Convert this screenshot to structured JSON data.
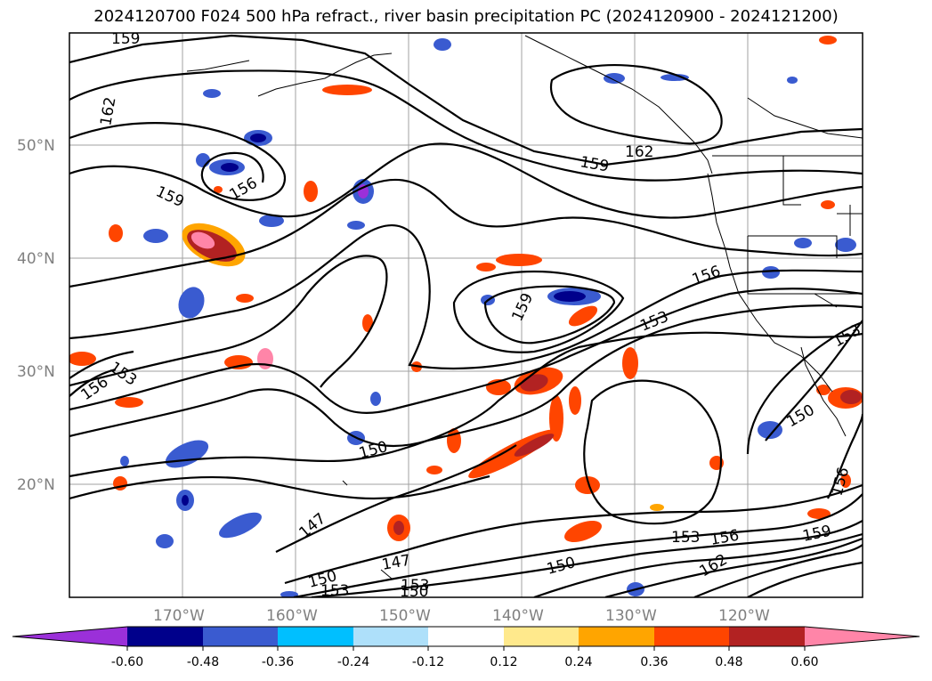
{
  "title": "2024120700 F024 500 hPa refract., river basin precipitation PC (2024120900 - 2024121200)",
  "map": {
    "lat_ticks": [
      "50°N",
      "40°N",
      "30°N",
      "20°N"
    ],
    "lon_ticks": [
      "170°W",
      "160°W",
      "150°W",
      "140°W",
      "130°W",
      "120°W"
    ],
    "contour_labels": [
      "159",
      "162",
      "159",
      "156",
      "159",
      "162",
      "159",
      "156",
      "153",
      "153",
      "156",
      "150",
      "150",
      "147",
      "150",
      "153",
      "147",
      "153",
      "150",
      "153",
      "156",
      "159",
      "162",
      "150",
      "156",
      "153"
    ]
  },
  "colorbar": {
    "ticks": [
      "-0.60",
      "-0.48",
      "-0.36",
      "-0.24",
      "-0.12",
      "0.12",
      "0.24",
      "0.36",
      "0.48",
      "0.60"
    ],
    "colors": [
      "#9b30d9",
      "#00008b",
      "#3a5bd0",
      "#00bfff",
      "#aee0fa",
      "#ffffff",
      "#ffe98c",
      "#ffa500",
      "#ff4500",
      "#b22222",
      "#ff85a8"
    ]
  }
}
